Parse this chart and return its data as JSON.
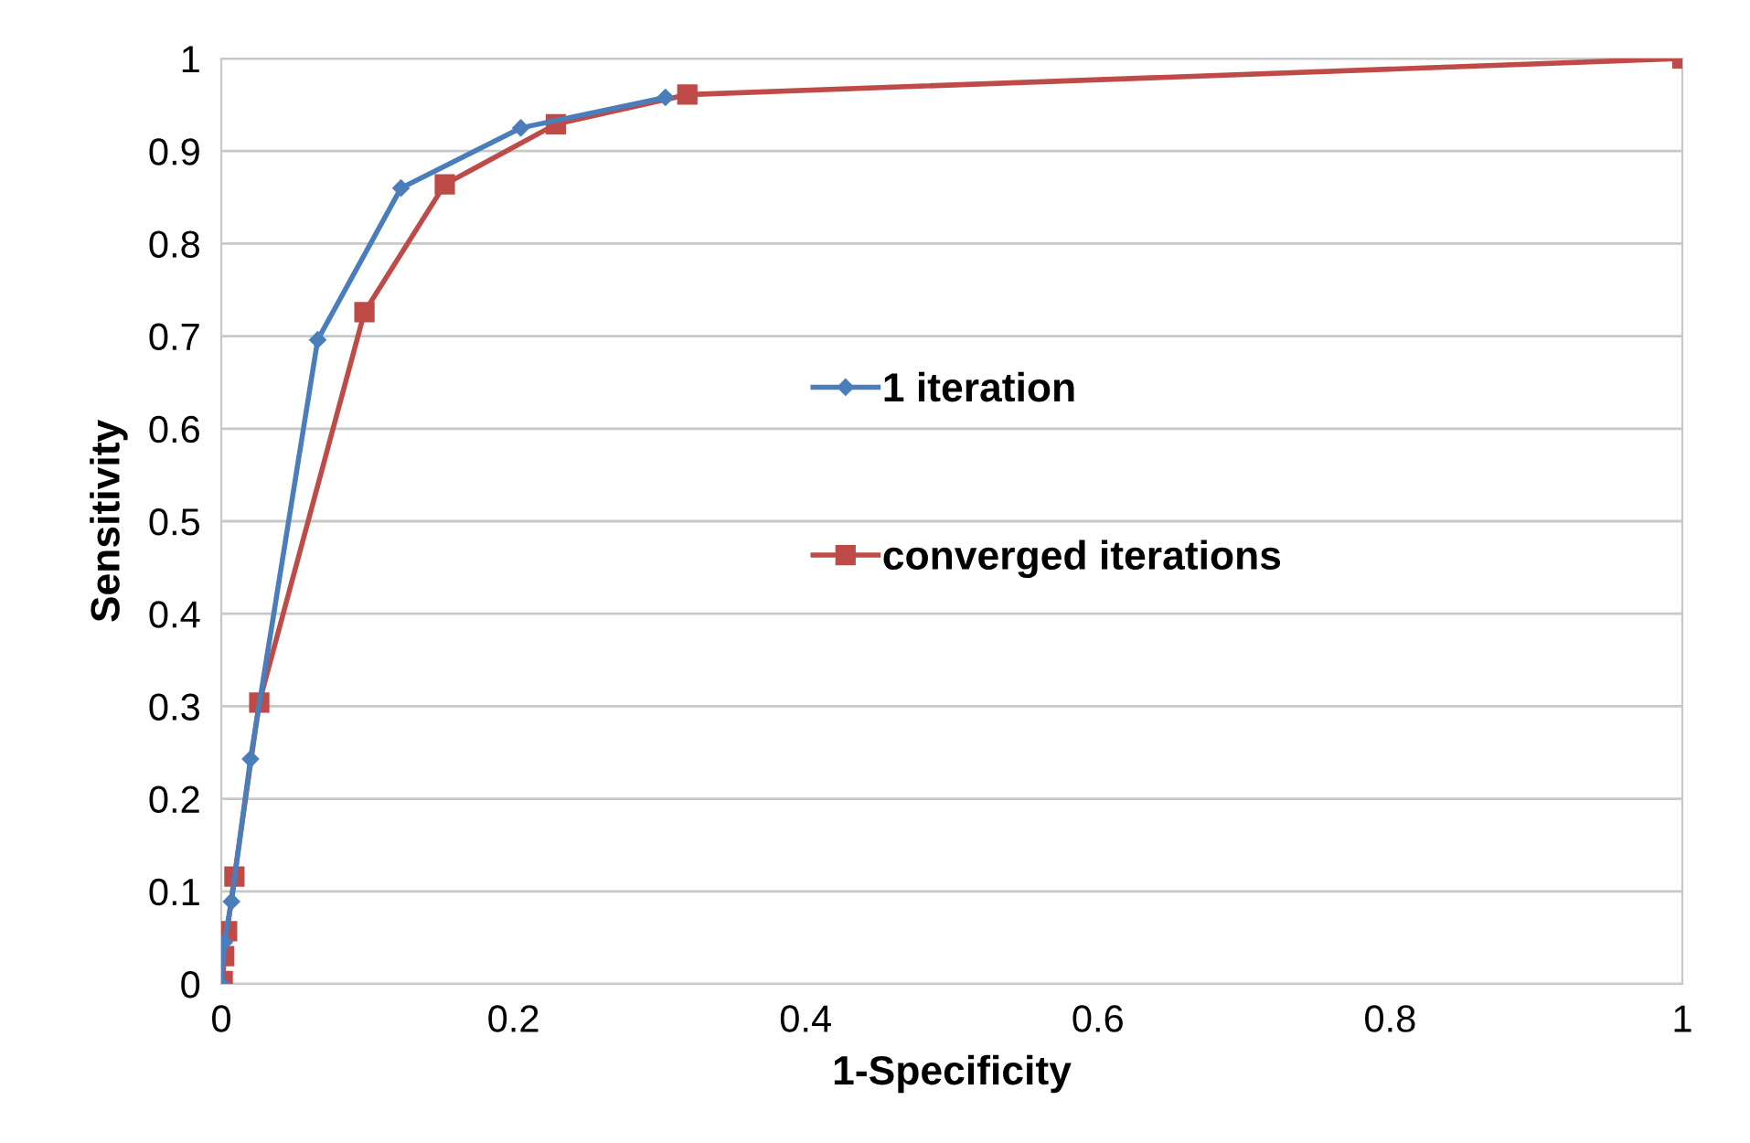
{
  "chart_data": {
    "type": "line",
    "xlabel": "1-Specificity",
    "ylabel": "Sensitivity",
    "xlim": [
      0,
      1
    ],
    "ylim": [
      0,
      1
    ],
    "xticks": [
      0,
      0.2,
      0.4,
      0.6,
      0.8,
      1
    ],
    "yticks": [
      0,
      0.1,
      0.2,
      0.3,
      0.4,
      0.5,
      0.6,
      0.7,
      0.8,
      0.9,
      1
    ],
    "grid": "y",
    "legend": "right",
    "line_style": "solid",
    "series": [
      {
        "name": "1 iteration",
        "color": "#4a7ebb",
        "marker": "diamond",
        "x": [
          0,
          0.002,
          0.007,
          0.02,
          0.066,
          0.123,
          0.205,
          0.304
        ],
        "values": [
          0,
          0.045,
          0.089,
          0.243,
          0.696,
          0.86,
          0.925,
          0.958
        ]
      },
      {
        "name": "converged iterations",
        "color": "#be4b48",
        "marker": "square",
        "x": [
          0.001,
          0.002,
          0.004,
          0.009,
          0.026,
          0.098,
          0.153,
          0.229,
          0.319,
          1
        ],
        "values": [
          0.003,
          0.03,
          0.057,
          0.116,
          0.304,
          0.726,
          0.864,
          0.929,
          0.961,
          1
        ]
      }
    ]
  }
}
